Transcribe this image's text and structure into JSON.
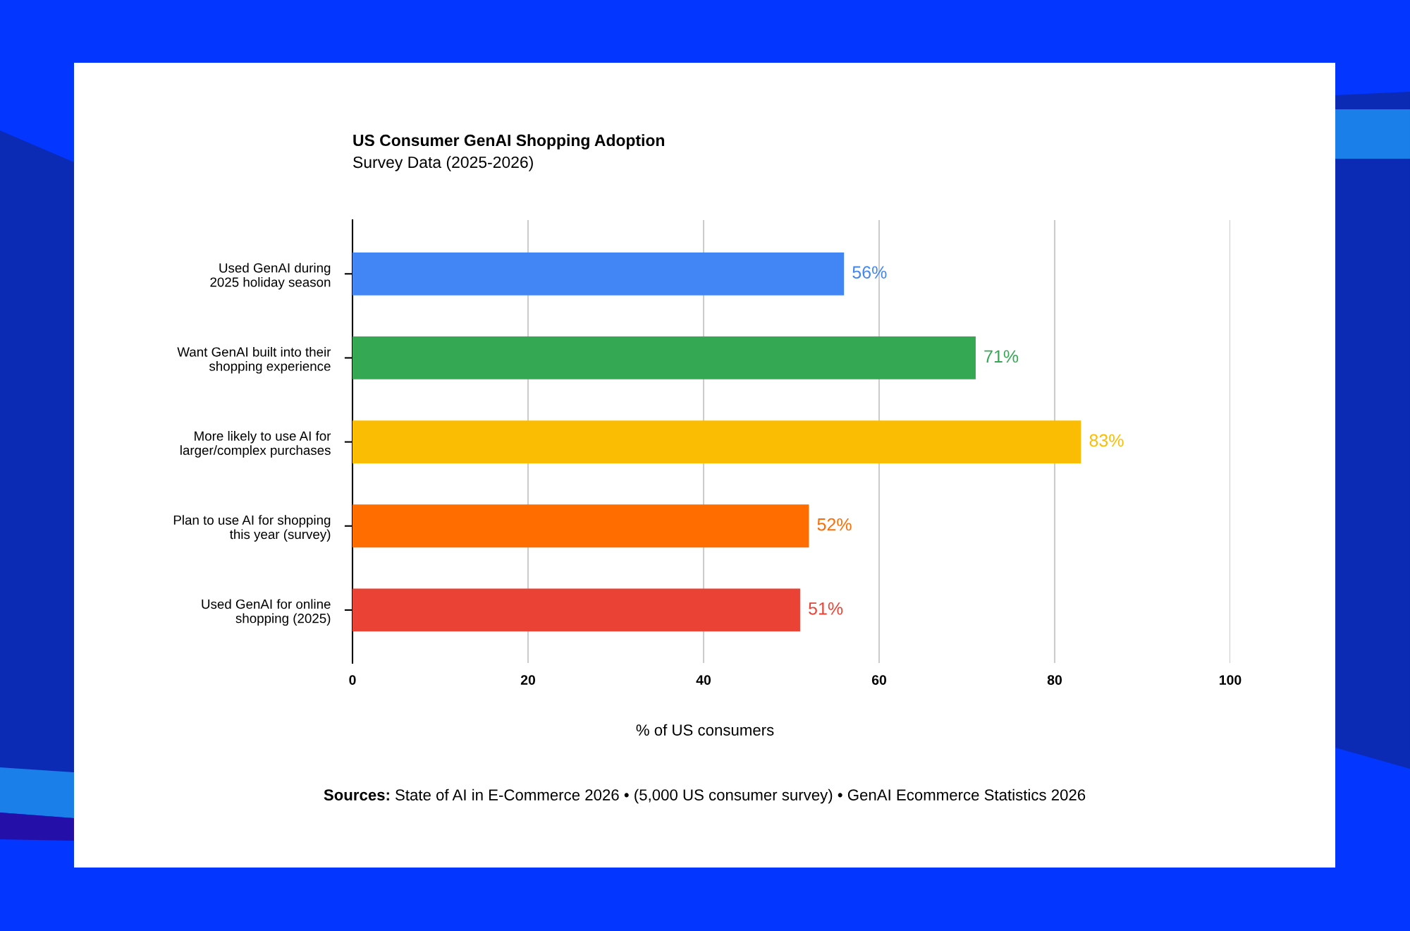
{
  "chart_data": {
    "type": "bar",
    "orientation": "horizontal",
    "title": "US Consumer GenAI Shopping Adoption",
    "subtitle": "Survey Data (2025-2026)",
    "xlabel": "% of US consumers",
    "categories": [
      "Used GenAI during\n2025 holiday season",
      "Want GenAI built into their\nshopping experience",
      "More likely to use AI for\nlarger/complex purchases",
      "Plan to use AI for shopping\nthis year (survey)",
      "Used GenAI for online\nshopping (2025)"
    ],
    "values": [
      56,
      71,
      83,
      52,
      51
    ],
    "colors": [
      "#4285f4",
      "#34a853",
      "#fbbc04",
      "#ff6d01",
      "#ea4335"
    ],
    "value_labels": [
      "56%",
      "71%",
      "83%",
      "52%",
      "51%"
    ],
    "xlim": [
      0,
      100
    ],
    "xticks": [
      0,
      20,
      40,
      60,
      80,
      100
    ],
    "grid": "x",
    "annotations": [
      "Sources:",
      "State of AI in E-Commerce 2026 • (5,000 US consumer survey) • GenAI Ecommerce Statistics 2026"
    ]
  }
}
